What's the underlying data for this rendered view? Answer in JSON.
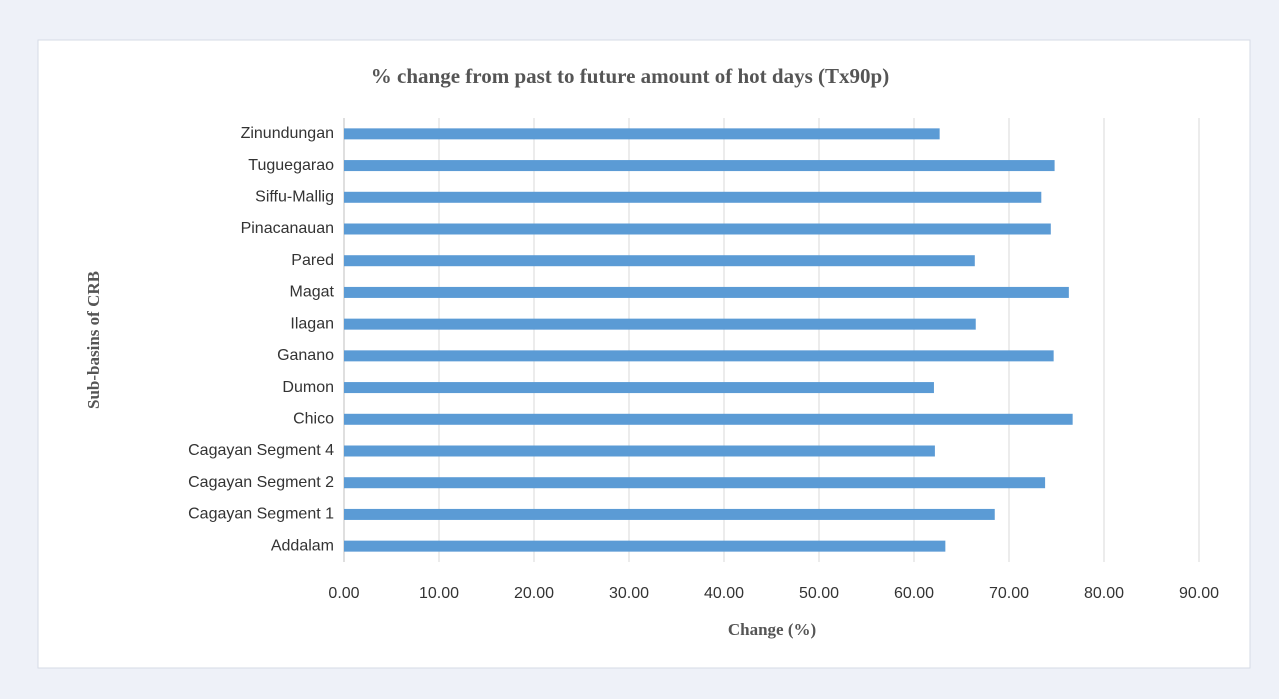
{
  "chart_data": {
    "type": "barh",
    "title": "% change from past to future amount of hot days (Tx90p)",
    "xlabel": "Change (%)",
    "ylabel": "Sub-basins of CRB",
    "categories": [
      "Zinundungan",
      "Tuguegarao",
      "Siffu-Mallig",
      "Pinacanauan",
      "Pared",
      "Magat",
      "Ilagan",
      "Ganano",
      "Dumon",
      "Chico",
      "Cagayan Segment 4",
      "Cagayan Segment 2",
      "Cagayan Segment 1",
      "Addalam"
    ],
    "values": [
      62.7,
      74.8,
      73.4,
      74.4,
      66.4,
      76.3,
      66.5,
      74.7,
      62.1,
      76.7,
      62.2,
      73.8,
      68.5,
      63.3
    ],
    "color": "#5b9bd5",
    "xlim": [
      0,
      90
    ],
    "xticks": [
      {
        "value": 0,
        "label": "0.00"
      },
      {
        "value": 10,
        "label": "10.00"
      },
      {
        "value": 20,
        "label": "20.00"
      },
      {
        "value": 30,
        "label": "30.00"
      },
      {
        "value": 40,
        "label": "40.00"
      },
      {
        "value": 50,
        "label": "50.00"
      },
      {
        "value": 60,
        "label": "60.00"
      },
      {
        "value": 70,
        "label": "70.00"
      },
      {
        "value": 80,
        "label": "80.00"
      },
      {
        "value": 90,
        "label": "90.00"
      }
    ],
    "grid": true
  }
}
